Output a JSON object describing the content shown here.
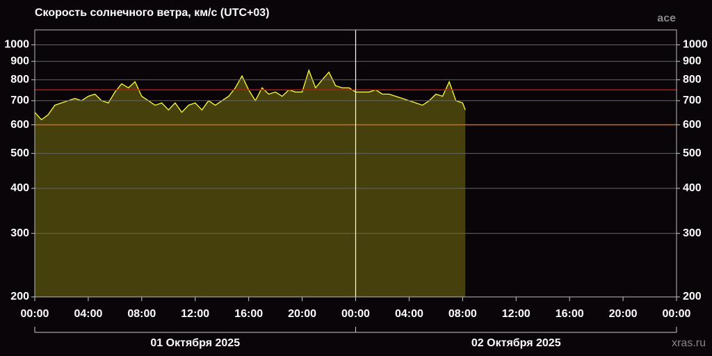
{
  "chart_data": {
    "type": "area",
    "title": "Скорость солнечного ветра, км/с (UTC+03)",
    "source": "ace",
    "site": "xras.ru",
    "log_scale": true,
    "grid": true,
    "x": [
      0,
      0.5,
      1,
      1.5,
      2,
      2.5,
      3,
      3.5,
      4,
      4.5,
      5,
      5.5,
      6,
      6.5,
      7,
      7.5,
      8,
      8.5,
      9,
      9.5,
      10,
      10.5,
      11,
      11.5,
      12,
      12.5,
      13,
      13.5,
      14,
      14.5,
      15,
      15.5,
      16,
      16.5,
      17,
      17.5,
      18,
      18.5,
      19,
      19.5,
      20,
      20.5,
      21,
      21.5,
      22,
      22.5,
      23,
      23.5,
      24,
      24.5,
      25,
      25.5,
      26,
      26.5,
      27,
      27.5,
      28,
      28.5,
      29,
      29.5,
      30,
      30.5,
      31,
      31.5,
      32,
      32.2
    ],
    "series": [
      {
        "color": "#ffff33",
        "fill": "#46400c",
        "values": [
          650,
          620,
          640,
          680,
          690,
          700,
          710,
          700,
          720,
          730,
          700,
          690,
          740,
          780,
          760,
          790,
          720,
          700,
          680,
          690,
          660,
          690,
          650,
          680,
          690,
          660,
          700,
          680,
          700,
          720,
          760,
          820,
          750,
          700,
          760,
          730,
          740,
          720,
          750,
          740,
          740,
          850,
          760,
          800,
          840,
          770,
          760,
          760,
          740,
          740,
          740,
          750,
          730,
          730,
          720,
          710,
          700,
          690,
          680,
          700,
          730,
          720,
          790,
          700,
          690,
          660
        ]
      }
    ],
    "thresholds": [
      {
        "value": 750,
        "color": "#cc1111"
      },
      {
        "value": 600,
        "color": "#d2691e"
      }
    ],
    "xlim": [
      0,
      48
    ],
    "ylim": [
      200,
      1100
    ],
    "xticks": [
      {
        "value": 0,
        "label": "00:00"
      },
      {
        "value": 4,
        "label": "04:00"
      },
      {
        "value": 8,
        "label": "08:00"
      },
      {
        "value": 12,
        "label": "12:00"
      },
      {
        "value": 16,
        "label": "16:00"
      },
      {
        "value": 20,
        "label": "20:00"
      },
      {
        "value": 24,
        "label": "00:00"
      },
      {
        "value": 28,
        "label": "04:00"
      },
      {
        "value": 32,
        "label": "08:00"
      },
      {
        "value": 36,
        "label": "12:00"
      },
      {
        "value": 40,
        "label": "16:00"
      },
      {
        "value": 44,
        "label": "20:00"
      },
      {
        "value": 48,
        "label": "00:00"
      }
    ],
    "yticks": [
      200,
      300,
      400,
      500,
      600,
      700,
      800,
      900,
      1000
    ],
    "day_labels": [
      "01 Октября 2025",
      "02 Октября 2025"
    ]
  }
}
